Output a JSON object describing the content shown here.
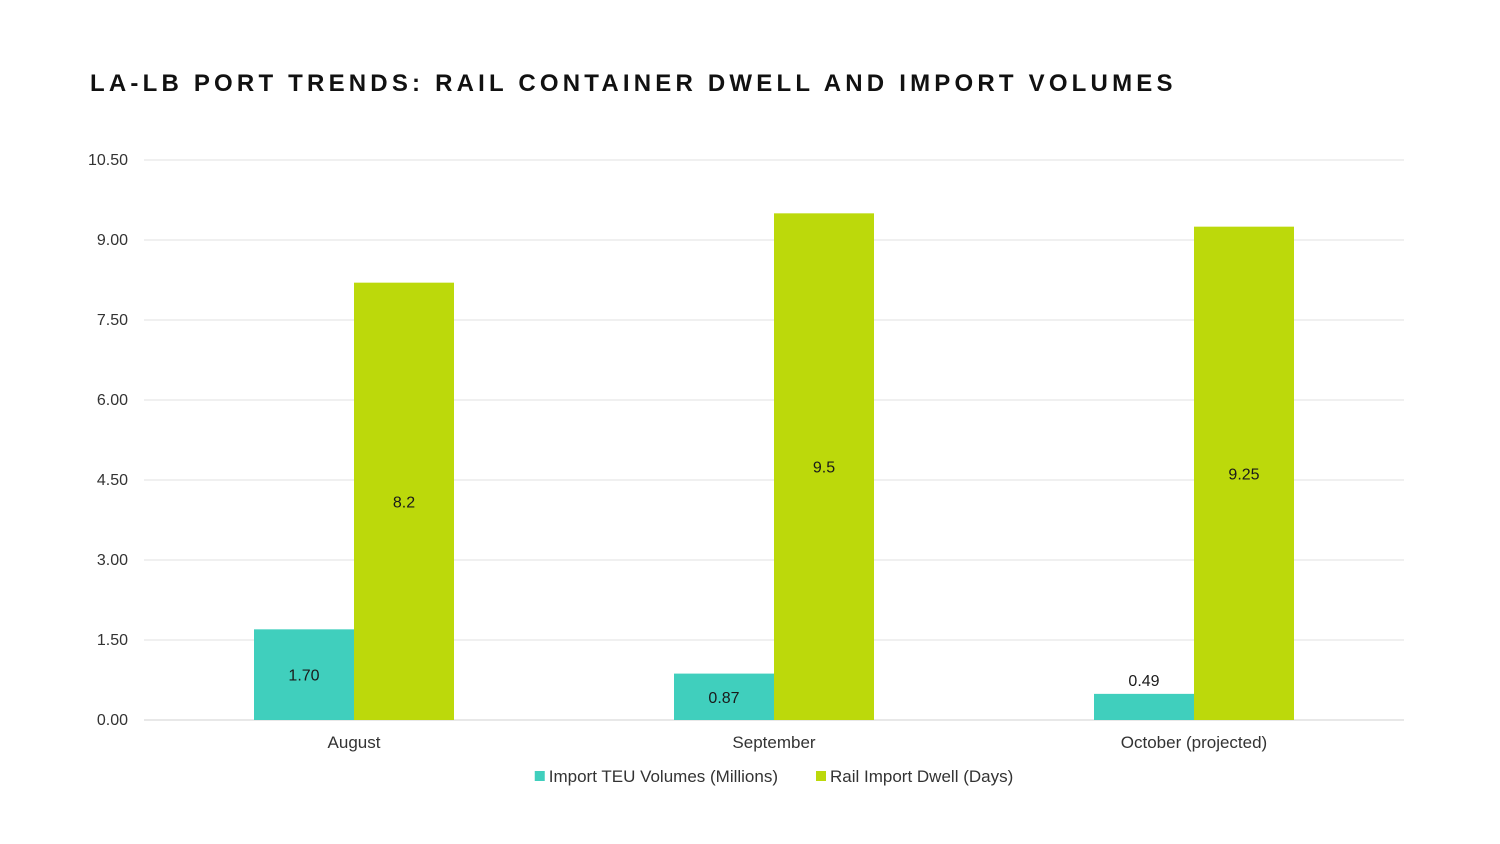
{
  "chart_data": {
    "type": "bar",
    "title": "LA-LB PORT TRENDS: RAIL CONTAINER DWELL AND IMPORT VOLUMES",
    "xlabel": "",
    "ylabel": "",
    "categories": [
      "August",
      "September",
      "October (projected)"
    ],
    "series": [
      {
        "name": "Import TEU Volumes (Millions)",
        "values": [
          1.7,
          0.87,
          0.49
        ],
        "labels": [
          "1.70",
          "0.87",
          "0.49"
        ],
        "color": "#40cfbd"
      },
      {
        "name": "Rail Import Dwell (Days)",
        "values": [
          8.2,
          9.5,
          9.25
        ],
        "labels": [
          "8.2",
          "9.5",
          "9.25"
        ],
        "color": "#bcd90b"
      }
    ],
    "ylim": [
      0,
      10.5
    ],
    "yticks": [
      "0.00",
      "1.50",
      "3.00",
      "4.50",
      "6.00",
      "7.50",
      "9.00",
      "10.50"
    ],
    "grid": true,
    "legend_position": "bottom"
  }
}
